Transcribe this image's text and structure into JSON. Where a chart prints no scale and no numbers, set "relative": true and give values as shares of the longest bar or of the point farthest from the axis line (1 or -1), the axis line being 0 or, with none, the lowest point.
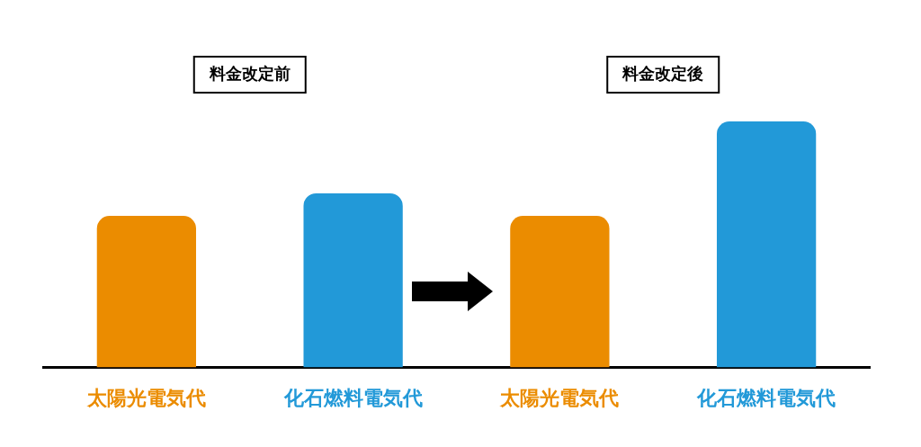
{
  "chart_data": {
    "type": "bar",
    "categories": [
      "太陽光電気代",
      "化石燃料電気代",
      "太陽光電気代",
      "化石燃料電気代"
    ],
    "values": [
      0.616,
      0.708,
      0.616,
      1
    ],
    "colors": [
      "#eb8c00",
      "#2299d8",
      "#eb8c00",
      "#2299d8"
    ],
    "relative": true,
    "annotations": [
      "料金改定前",
      "料金改定後"
    ]
  }
}
